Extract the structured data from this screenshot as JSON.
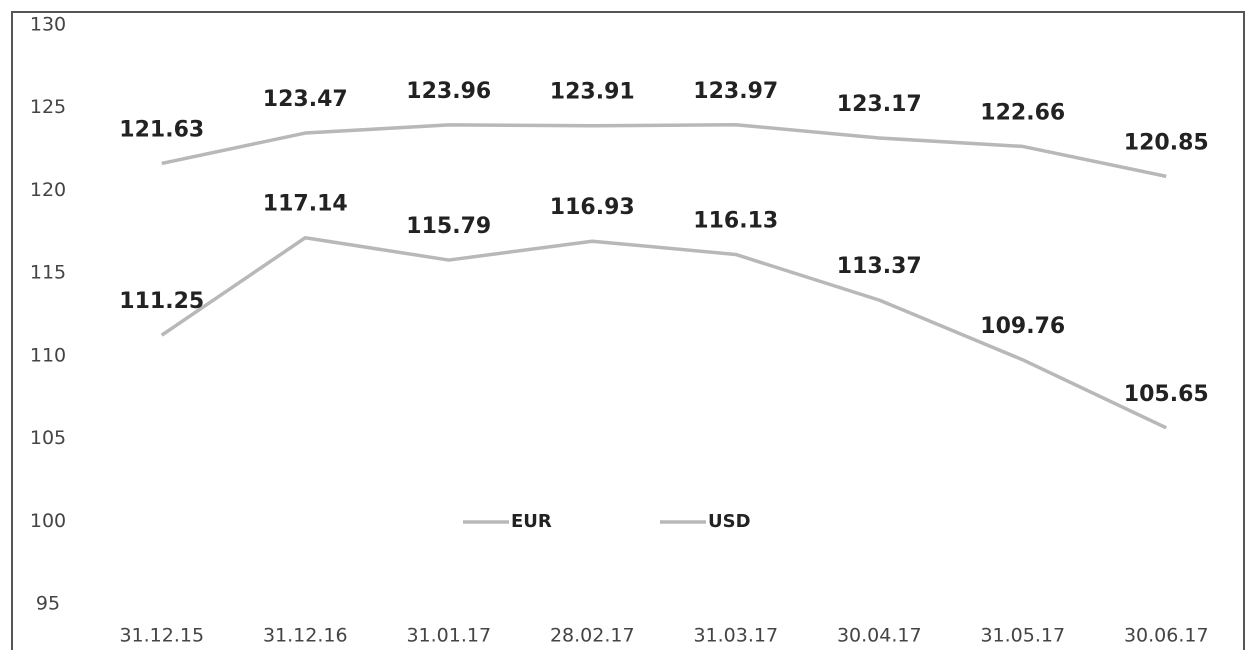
{
  "chart_data": {
    "type": "line",
    "categories": [
      "31.12.15",
      "31.12.16",
      "31.01.17",
      "28.02.17",
      "31.03.17",
      "30.04.17",
      "31.05.17",
      "30.06.17"
    ],
    "series": [
      {
        "name": "EUR",
        "color": "#b8b8b8",
        "values": [
          121.63,
          123.47,
          123.96,
          123.91,
          123.97,
          123.17,
          122.66,
          120.85
        ]
      },
      {
        "name": "USD",
        "color": "#b8b8b8",
        "values": [
          111.25,
          117.14,
          115.79,
          116.93,
          116.13,
          113.37,
          109.76,
          105.65
        ]
      }
    ],
    "ylim": [
      95,
      130
    ],
    "yticks": [
      95,
      100,
      105,
      110,
      115,
      120,
      125,
      130
    ],
    "legend": "center"
  }
}
